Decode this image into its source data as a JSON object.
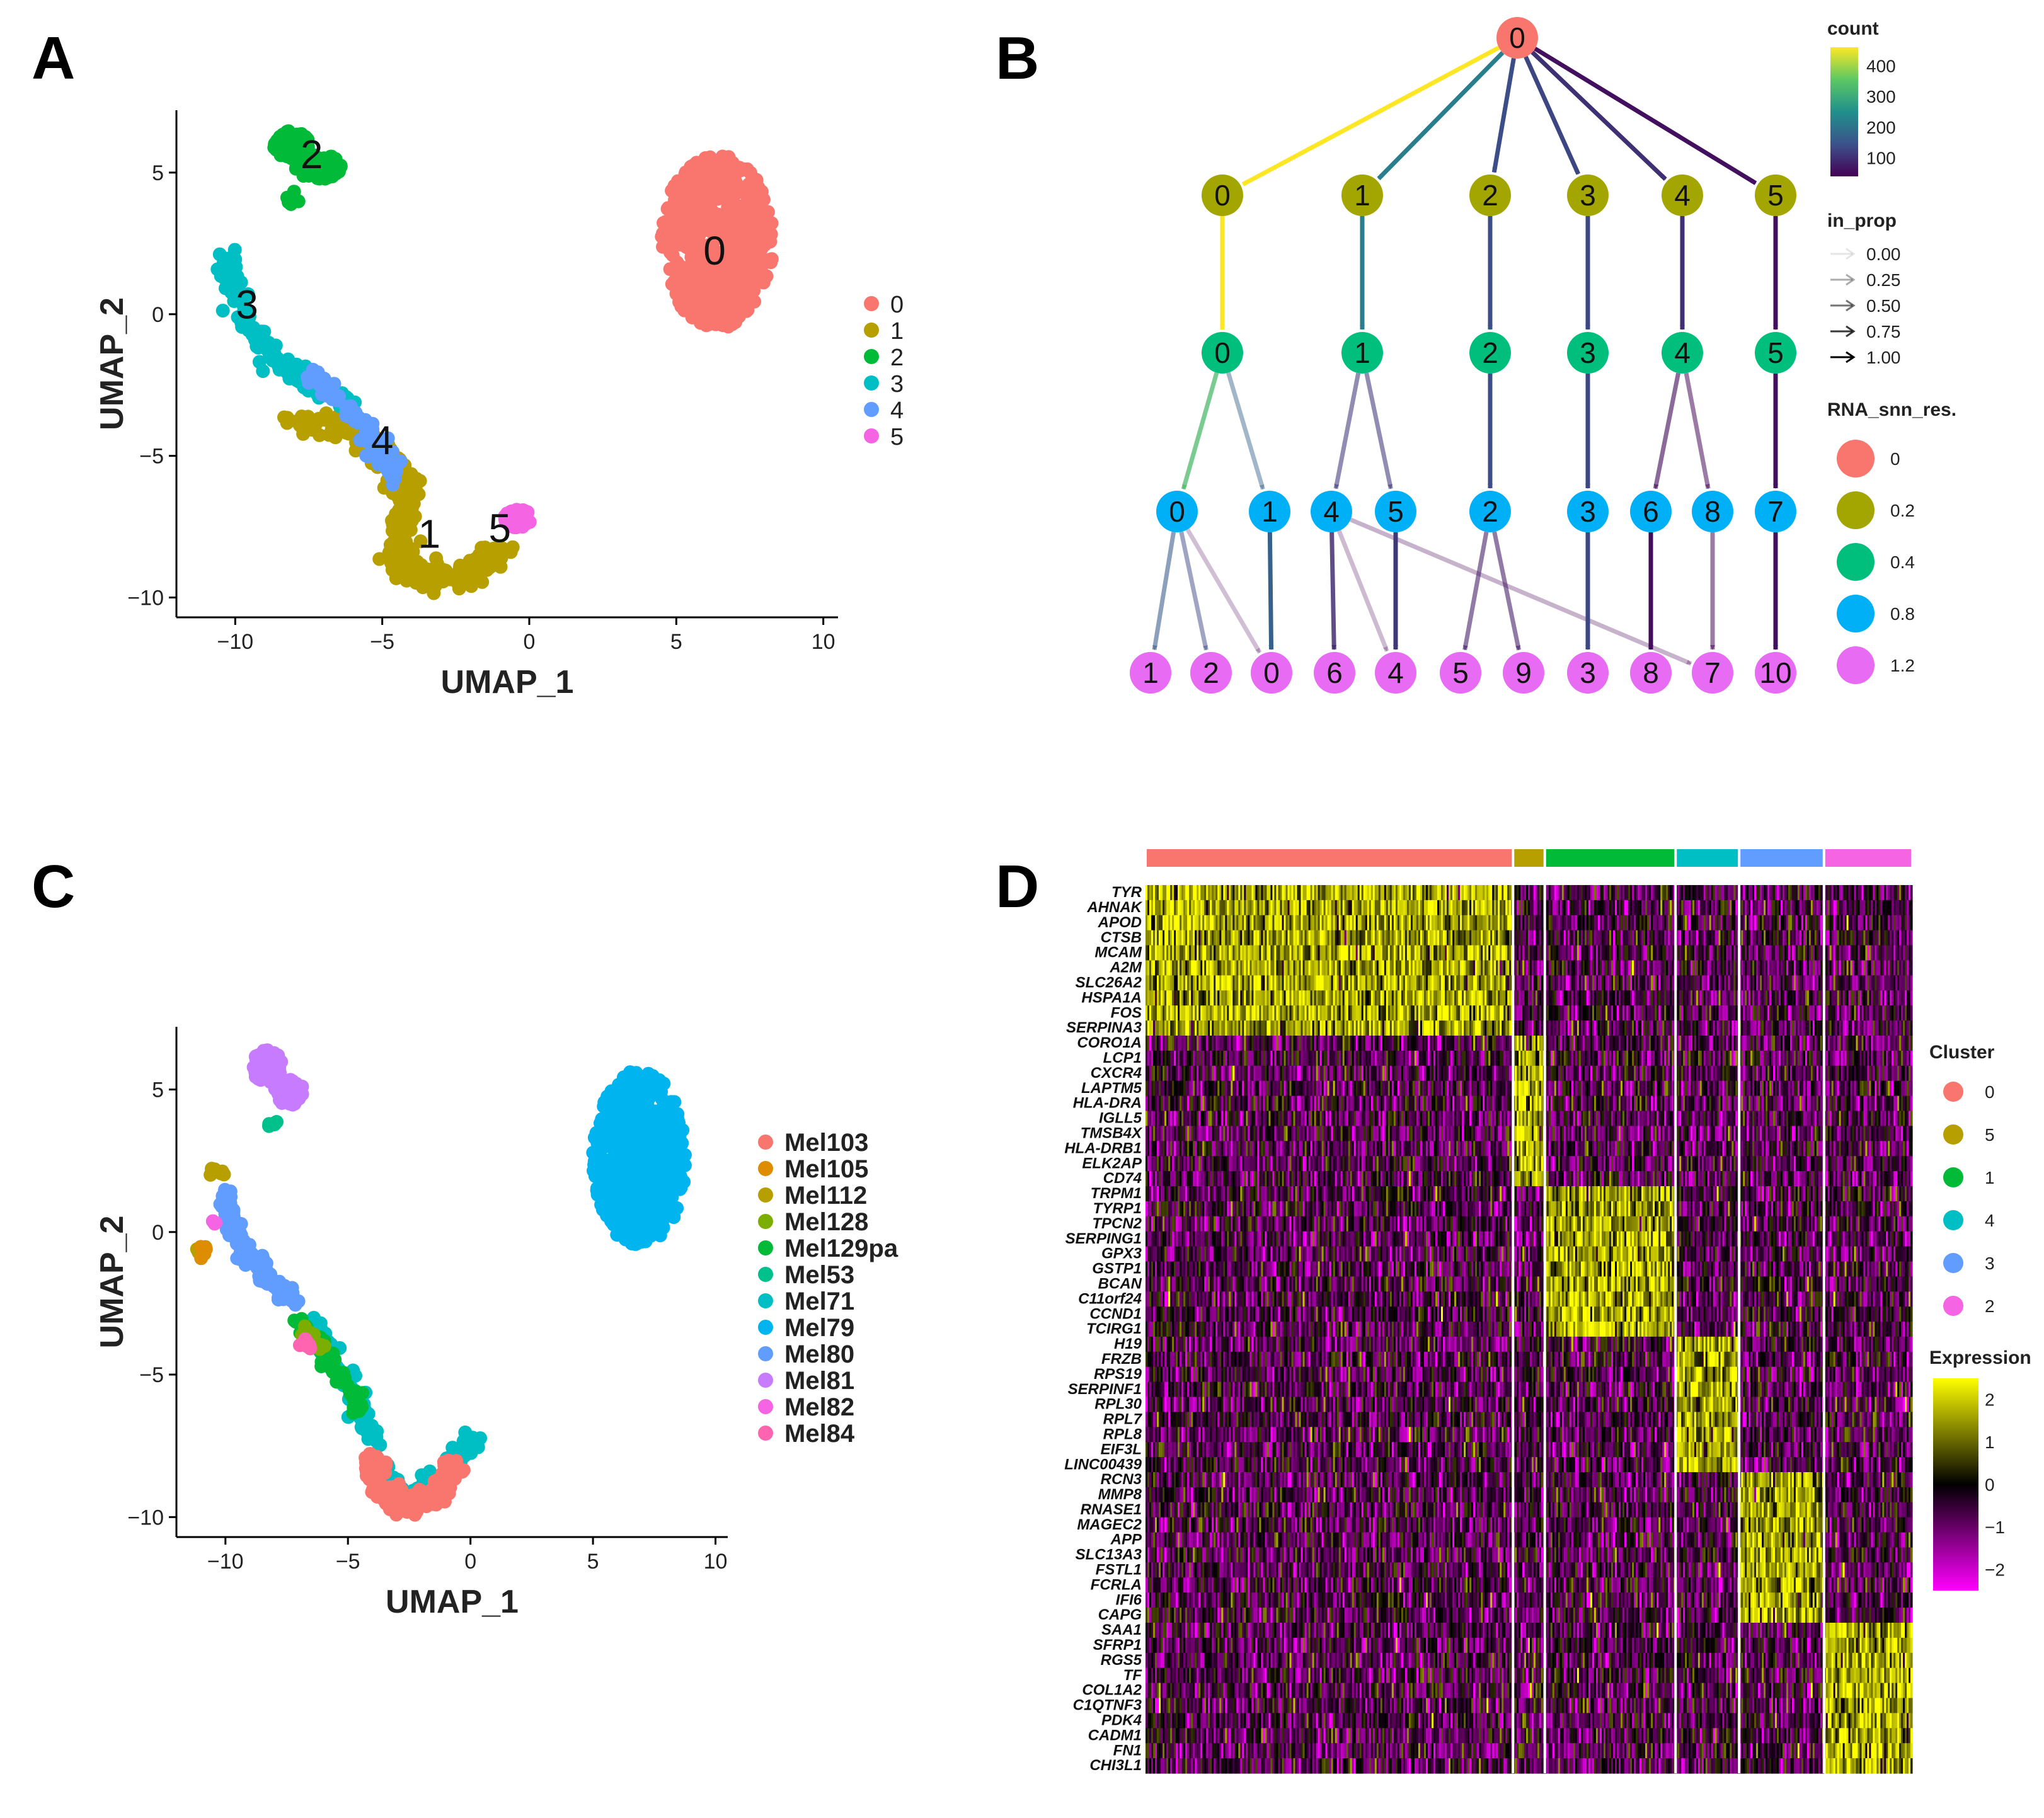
{
  "panels": [
    "A",
    "B",
    "C",
    "D"
  ],
  "chart_data": [
    {
      "id": "A",
      "type": "scatter",
      "xlabel": "UMAP_1",
      "ylabel": "UMAP_2",
      "xlim": [
        -12,
        10.5
      ],
      "ylim": [
        -10.7,
        7.2
      ],
      "xticks": [
        -10,
        -5,
        0,
        5,
        10
      ],
      "yticks": [
        -10,
        -5,
        0,
        5
      ],
      "legend_position": "right",
      "legend": [
        "0",
        "1",
        "2",
        "3",
        "4",
        "5"
      ],
      "colors": [
        "#F8766D",
        "#B79F00",
        "#00BA38",
        "#00BFC4",
        "#619CFF",
        "#F564E3"
      ],
      "clusters": [
        {
          "name": "0",
          "color": "#F8766D",
          "label": "0",
          "label_xy": [
            6.3,
            2.2
          ],
          "blobs": [
            [
              6.4,
              2.6,
              1.9,
              3.1,
              520
            ]
          ]
        },
        {
          "name": "1",
          "color": "#B79F00",
          "label": "1",
          "label_xy": [
            -3.4,
            -7.8
          ],
          "path": [
            [
              -8,
              -3.9
            ],
            [
              -6.4,
              -3.8
            ],
            [
              -5.2,
              -4.7
            ],
            [
              -4.2,
              -5.8
            ],
            [
              -4.3,
              -7.4
            ],
            [
              -4.4,
              -8.9
            ],
            [
              -3.2,
              -9.4
            ],
            [
              -2,
              -9.2
            ],
            [
              -0.9,
              -8.2
            ]
          ],
          "n": 300,
          "spread": 0.45
        },
        {
          "name": "2",
          "color": "#00BA38",
          "label": "2",
          "label_xy": [
            -7.4,
            5.6
          ],
          "blobs": [
            [
              -8.1,
              6.0,
              0.6,
              0.5,
              70
            ],
            [
              -7.2,
              5.2,
              0.8,
              0.45,
              60
            ],
            [
              -8.0,
              4.1,
              0.3,
              0.3,
              8
            ]
          ]
        },
        {
          "name": "3",
          "color": "#00BFC4",
          "label": "3",
          "label_xy": [
            -9.6,
            0.3
          ],
          "path": [
            [
              -10.2,
              2.2
            ],
            [
              -10.1,
              1.0
            ],
            [
              -9.4,
              -0.6
            ],
            [
              -8.4,
              -1.9
            ],
            [
              -7.3,
              -2.5
            ],
            [
              -6.0,
              -3.2
            ]
          ],
          "n": 170,
          "spread": 0.35
        },
        {
          "name": "4",
          "color": "#619CFF",
          "label": "4",
          "label_xy": [
            -5.0,
            -4.5
          ],
          "path": [
            [
              -7.4,
              -2.1
            ],
            [
              -6.0,
              -3.4
            ],
            [
              -5.2,
              -4.8
            ],
            [
              -4.6,
              -5.7
            ]
          ],
          "n": 90,
          "spread": 0.3
        },
        {
          "name": "5",
          "color": "#F564E3",
          "label": "5",
          "label_xy": [
            -1.0,
            -7.6
          ],
          "blobs": [
            [
              -0.4,
              -7.2,
              0.45,
              0.35,
              45
            ]
          ]
        }
      ]
    },
    {
      "id": "B",
      "type": "tree",
      "resolutions": [
        "0",
        "0.2",
        "0.4",
        "0.8",
        "1.2"
      ],
      "level_colors": [
        "#F8766D",
        "#A3A500",
        "#00BF7D",
        "#00B0F6",
        "#E76BF3"
      ],
      "levels": [
        [
          "0"
        ],
        [
          "0",
          "1",
          "2",
          "3",
          "4",
          "5"
        ],
        [
          "0",
          "1",
          "2",
          "3",
          "4",
          "5"
        ],
        [
          "0",
          "1",
          "4",
          "5",
          "2",
          "3",
          "6",
          "8",
          "7"
        ],
        [
          "1",
          "2",
          "0",
          "6",
          "4",
          "5",
          "9",
          "3",
          "8",
          "7",
          "10"
        ]
      ],
      "edges": [
        {
          "from": [
            0,
            0
          ],
          "to": [
            1,
            0
          ],
          "count": 460,
          "prop": 1.0
        },
        {
          "from": [
            0,
            0
          ],
          "to": [
            1,
            1
          ],
          "count": 220,
          "prop": 1.0
        },
        {
          "from": [
            0,
            0
          ],
          "to": [
            1,
            2
          ],
          "count": 140,
          "prop": 1.0
        },
        {
          "from": [
            0,
            0
          ],
          "to": [
            1,
            3
          ],
          "count": 130,
          "prop": 1.0
        },
        {
          "from": [
            0,
            0
          ],
          "to": [
            1,
            4
          ],
          "count": 100,
          "prop": 1.0
        },
        {
          "from": [
            0,
            0
          ],
          "to": [
            1,
            5
          ],
          "count": 60,
          "prop": 1.0
        },
        {
          "from": [
            1,
            0
          ],
          "to": [
            2,
            0
          ],
          "count": 460,
          "prop": 1.0
        },
        {
          "from": [
            1,
            1
          ],
          "to": [
            2,
            1
          ],
          "count": 220,
          "prop": 1.0
        },
        {
          "from": [
            1,
            2
          ],
          "to": [
            2,
            2
          ],
          "count": 140,
          "prop": 1.0
        },
        {
          "from": [
            1,
            3
          ],
          "to": [
            2,
            3
          ],
          "count": 130,
          "prop": 1.0
        },
        {
          "from": [
            1,
            4
          ],
          "to": [
            2,
            4
          ],
          "count": 100,
          "prop": 1.0
        },
        {
          "from": [
            1,
            5
          ],
          "to": [
            2,
            5
          ],
          "count": 60,
          "prop": 1.0
        },
        {
          "from": [
            2,
            0
          ],
          "to": [
            3,
            0
          ],
          "count": 330,
          "prop": 0.72
        },
        {
          "from": [
            2,
            0
          ],
          "to": [
            3,
            1
          ],
          "count": 170,
          "prop": 0.37
        },
        {
          "from": [
            2,
            1
          ],
          "to": [
            3,
            2
          ],
          "count": 110,
          "prop": 0.5
        },
        {
          "from": [
            2,
            1
          ],
          "to": [
            3,
            3
          ],
          "count": 110,
          "prop": 0.5
        },
        {
          "from": [
            2,
            2
          ],
          "to": [
            3,
            4
          ],
          "count": 140,
          "prop": 1.0
        },
        {
          "from": [
            2,
            3
          ],
          "to": [
            3,
            5
          ],
          "count": 130,
          "prop": 1.0
        },
        {
          "from": [
            2,
            4
          ],
          "to": [
            3,
            6
          ],
          "count": 55,
          "prop": 0.55
        },
        {
          "from": [
            2,
            4
          ],
          "to": [
            3,
            7
          ],
          "count": 45,
          "prop": 0.45
        },
        {
          "from": [
            2,
            5
          ],
          "to": [
            3,
            8
          ],
          "count": 60,
          "prop": 1.0
        },
        {
          "from": [
            3,
            0
          ],
          "to": [
            4,
            0
          ],
          "count": 160,
          "prop": 0.5
        },
        {
          "from": [
            3,
            0
          ],
          "to": [
            4,
            1
          ],
          "count": 130,
          "prop": 0.4
        },
        {
          "from": [
            3,
            0
          ],
          "to": [
            4,
            2
          ],
          "count": 40,
          "prop": 0.12
        },
        {
          "from": [
            3,
            1
          ],
          "to": [
            4,
            2
          ],
          "count": 170,
          "prop": 1.0
        },
        {
          "from": [
            3,
            2
          ],
          "to": [
            4,
            3
          ],
          "count": 90,
          "prop": 0.8
        },
        {
          "from": [
            3,
            2
          ],
          "to": [
            4,
            4
          ],
          "count": 15,
          "prop": 0.14
        },
        {
          "from": [
            3,
            2
          ],
          "to": [
            4,
            9
          ],
          "count": 20,
          "prop": 0.18
        },
        {
          "from": [
            3,
            3
          ],
          "to": [
            4,
            4
          ],
          "count": 110,
          "prop": 1.0
        },
        {
          "from": [
            3,
            4
          ],
          "to": [
            4,
            5
          ],
          "count": 70,
          "prop": 0.5
        },
        {
          "from": [
            3,
            4
          ],
          "to": [
            4,
            6
          ],
          "count": 70,
          "prop": 0.5
        },
        {
          "from": [
            3,
            5
          ],
          "to": [
            4,
            7
          ],
          "count": 130,
          "prop": 1.0
        },
        {
          "from": [
            3,
            6
          ],
          "to": [
            4,
            8
          ],
          "count": 55,
          "prop": 1.0
        },
        {
          "from": [
            3,
            7
          ],
          "to": [
            4,
            9
          ],
          "count": 45,
          "prop": 0.45
        },
        {
          "from": [
            3,
            8
          ],
          "to": [
            4,
            10
          ],
          "count": 60,
          "prop": 1.0
        }
      ],
      "legend": {
        "count_title": "count",
        "count_ticks": [
          "400",
          "300",
          "200",
          "100"
        ],
        "count_colors": [
          "#440154",
          "#3B528B",
          "#21908C",
          "#5DC863",
          "#FDE725"
        ],
        "count_range": [
          40,
          460
        ],
        "in_prop_title": "in_prop",
        "in_prop_values": [
          "0.00",
          "0.25",
          "0.50",
          "0.75",
          "1.00"
        ],
        "res_title": "RNA_snn_res.",
        "res_values": [
          "0",
          "0.2",
          "0.4",
          "0.8",
          "1.2"
        ]
      }
    },
    {
      "id": "C",
      "type": "scatter",
      "xlabel": "UMAP_1",
      "ylabel": "UMAP_2",
      "xlim": [
        -12,
        10.5
      ],
      "ylim": [
        -10.7,
        7.2
      ],
      "xticks": [
        -10,
        -5,
        0,
        5,
        10
      ],
      "yticks": [
        -10,
        -5,
        0,
        5
      ],
      "legend_position": "right",
      "legend": [
        "Mel103",
        "Mel105",
        "Mel112",
        "Mel128",
        "Mel129pa",
        "Mel53",
        "Mel71",
        "Mel79",
        "Mel80",
        "Mel81",
        "Mel82",
        "Mel84"
      ],
      "colors": [
        "#F8766D",
        "#DE8C00",
        "#B79F00",
        "#7CAE00",
        "#00BA38",
        "#00C08B",
        "#00BFC4",
        "#00B4F0",
        "#619CFF",
        "#C77CFF",
        "#F564E3",
        "#FF64B0"
      ],
      "clusters": [
        {
          "name": "Mel79",
          "color": "#00B4F0",
          "blobs": [
            [
              6.9,
              2.6,
              1.9,
              3.1,
              520
            ]
          ]
        },
        {
          "name": "Mel81",
          "color": "#C77CFF",
          "blobs": [
            [
              -8.3,
              5.8,
              0.6,
              0.6,
              70
            ],
            [
              -7.4,
              4.9,
              0.6,
              0.45,
              50
            ]
          ]
        },
        {
          "name": "Mel53",
          "color": "#00C08B",
          "blobs": [
            [
              -8.1,
              3.8,
              0.2,
              0.2,
              6
            ]
          ]
        },
        {
          "name": "Mel80",
          "color": "#619CFF",
          "path": [
            [
              -10.1,
              1.4
            ],
            [
              -9.6,
              0.0
            ],
            [
              -8.6,
              -1.4
            ],
            [
              -7.3,
              -2.4
            ]
          ],
          "n": 120,
          "spread": 0.35
        },
        {
          "name": "Mel71",
          "color": "#00BFC4",
          "path": [
            [
              -6.6,
              -3.0
            ],
            [
              -5.4,
              -4.6
            ],
            [
              -4.3,
              -6.5
            ],
            [
              -3.8,
              -8.5
            ],
            [
              -2.2,
              -9.2
            ],
            [
              -0.8,
              -8.2
            ],
            [
              0.2,
              -7.2
            ]
          ],
          "n": 150,
          "spread": 0.4
        },
        {
          "name": "Mel129pa",
          "color": "#00BA38",
          "path": [
            [
              -7.2,
              -3.0
            ],
            [
              -6.0,
              -4.2
            ],
            [
              -5.2,
              -5.2
            ],
            [
              -4.4,
              -6.2
            ]
          ],
          "n": 60,
          "spread": 0.35
        },
        {
          "name": "Mel103",
          "color": "#F8766D",
          "path": [
            [
              -4.1,
              -7.8
            ],
            [
              -3.7,
              -9.0
            ],
            [
              -2.6,
              -9.6
            ],
            [
              -1.4,
              -9.2
            ],
            [
              -0.6,
              -8.2
            ]
          ],
          "n": 220,
          "spread": 0.4
        },
        {
          "name": "Mel128",
          "color": "#7CAE00",
          "path": [
            [
              -6.9,
              -3.5
            ],
            [
              -6.3,
              -4.0
            ]
          ],
          "n": 20,
          "spread": 0.3
        },
        {
          "name": "Mel112",
          "color": "#B79F00",
          "blobs": [
            [
              -10.3,
              2.1,
              0.35,
              0.25,
              10
            ],
            [
              -11.0,
              -0.6,
              0.2,
              0.2,
              5
            ]
          ]
        },
        {
          "name": "Mel105",
          "color": "#DE8C00",
          "blobs": [
            [
              -10.9,
              -0.7,
              0.2,
              0.25,
              6
            ]
          ]
        },
        {
          "name": "Mel82",
          "color": "#F564E3",
          "blobs": [
            [
              -10.4,
              0.3,
              0.15,
              0.15,
              3
            ]
          ]
        },
        {
          "name": "Mel84",
          "color": "#FF64B0",
          "blobs": [
            [
              -6.8,
              -4.0,
              0.3,
              0.25,
              8
            ]
          ]
        }
      ]
    },
    {
      "id": "D",
      "type": "heatmap",
      "genes": [
        "TYR",
        "AHNAK",
        "APOD",
        "CTSB",
        "MCAM",
        "A2M",
        "SLC26A2",
        "HSPA1A",
        "FOS",
        "SERPINA3",
        "CORO1A",
        "LCP1",
        "CXCR4",
        "LAPTM5",
        "HLA-DRA",
        "IGLL5",
        "TMSB4X",
        "HLA-DRB1",
        "ELK2AP",
        "CD74",
        "TRPM1",
        "TYRP1",
        "TPCN2",
        "SERPING1",
        "GPX3",
        "GSTP1",
        "BCAN",
        "C11orf24",
        "CCND1",
        "TCIRG1",
        "H19",
        "FRZB",
        "RPS19",
        "SERPINF1",
        "RPL30",
        "RPL7",
        "RPL8",
        "EIF3L",
        "LINC00439",
        "RCN3",
        "MMP8",
        "RNASE1",
        "MAGEC2",
        "APP",
        "SLC13A3",
        "FSTL1",
        "FCRLA",
        "IFI6",
        "CAPG",
        "SAA1",
        "SFRP1",
        "RGS5",
        "TF",
        "COL1A2",
        "C1QTNF3",
        "PDK4",
        "CADM1",
        "FN1",
        "CHI3L1"
      ],
      "cluster_order": [
        "0",
        "5",
        "1",
        "4",
        "3",
        "2"
      ],
      "cluster_colors": [
        "#F8766D",
        "#B79F00",
        "#00BA38",
        "#00BFC4",
        "#619CFF",
        "#F564E3"
      ],
      "cluster_widths": [
        520,
        45,
        185,
        90,
        120,
        125
      ],
      "gene_groups": [
        {
          "cluster": "0",
          "rows": [
            0,
            10
          ]
        },
        {
          "cluster": "5",
          "rows": [
            10,
            20
          ]
        },
        {
          "cluster": "1",
          "rows": [
            20,
            30
          ]
        },
        {
          "cluster": "4",
          "rows": [
            30,
            39
          ]
        },
        {
          "cluster": "3",
          "rows": [
            39,
            49
          ]
        },
        {
          "cluster": "2",
          "rows": [
            49,
            59
          ]
        }
      ],
      "legend": {
        "cluster_title": "Cluster",
        "cluster_entries": [
          "0",
          "5",
          "1",
          "4",
          "3",
          "2"
        ],
        "expr_title": "Expression",
        "expr_ticks": [
          "2",
          "1",
          "0",
          "−1",
          "−2"
        ],
        "expr_range": [
          -2.5,
          2.5
        ],
        "expr_colors": [
          "#FF00FF",
          "#000000",
          "#FFFF00"
        ]
      }
    }
  ]
}
